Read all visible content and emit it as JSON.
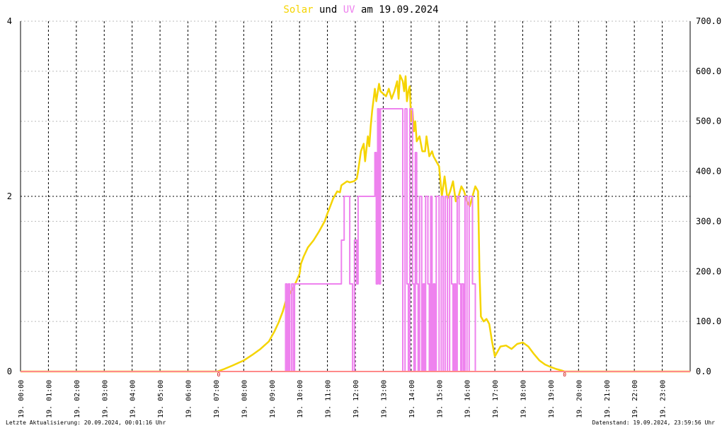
{
  "title": {
    "part1": "Solar",
    "part2": " und ",
    "part3": "UV",
    "part4": " am 19.09.2024",
    "colors": {
      "solar": "#f5d400",
      "uv": "#ee82ee",
      "text": "#000000"
    }
  },
  "footer": {
    "left": "Letzte Aktualisierung: 20.09.2024, 00:01:16 Uhr",
    "right": "Datenstand: 19.09.2024, 23:59:56 Uhr"
  },
  "chart_data": {
    "type": "line",
    "grid": true,
    "x_tick_labels": [
      "19. 00:00",
      "19. 01:00",
      "19. 02:00",
      "19. 03:00",
      "19. 04:00",
      "19. 05:00",
      "19. 06:00",
      "19. 07:00",
      "19. 08:00",
      "19. 09:00",
      "19. 10:00",
      "19. 11:00",
      "19. 12:00",
      "19. 13:00",
      "19. 14:00",
      "19. 15:00",
      "19. 16:00",
      "19. 17:00",
      "19. 18:00",
      "19. 19:00",
      "19. 20:00",
      "19. 21:00",
      "19. 22:00",
      "19. 23:00"
    ],
    "xlim": [
      0,
      24
    ],
    "left_axis": {
      "ylim": [
        0,
        4
      ],
      "tick_labels": [
        "0",
        "2",
        "4"
      ],
      "tick_values": [
        0,
        2,
        4
      ]
    },
    "right_axis": {
      "ylim": [
        0,
        700
      ],
      "tick_labels": [
        "0.0",
        "100.0",
        "200.0",
        "300.0",
        "400.0",
        "500.0",
        "600.0",
        "700.0"
      ],
      "tick_values": [
        0,
        100,
        200,
        300,
        400,
        500,
        600,
        700
      ]
    },
    "markers": [
      {
        "label": "0",
        "x": 7.1
      },
      {
        "label": "0",
        "x": 19.5
      }
    ],
    "series": [
      {
        "color": "#f5d400",
        "axis": "right",
        "points": [
          [
            0,
            0
          ],
          [
            7.05,
            0
          ],
          [
            7.3,
            5
          ],
          [
            7.6,
            12
          ],
          [
            8.0,
            22
          ],
          [
            8.3,
            33
          ],
          [
            8.6,
            45
          ],
          [
            8.9,
            60
          ],
          [
            9.1,
            80
          ],
          [
            9.25,
            98
          ],
          [
            9.4,
            120
          ],
          [
            9.5,
            140
          ],
          [
            9.65,
            155
          ],
          [
            9.8,
            170
          ],
          [
            9.9,
            182
          ],
          [
            10.0,
            195
          ],
          [
            10.05,
            215
          ],
          [
            10.15,
            230
          ],
          [
            10.3,
            248
          ],
          [
            10.5,
            262
          ],
          [
            10.7,
            280
          ],
          [
            10.9,
            300
          ],
          [
            11.0,
            316
          ],
          [
            11.1,
            330
          ],
          [
            11.2,
            345
          ],
          [
            11.35,
            360
          ],
          [
            11.45,
            358
          ],
          [
            11.5,
            372
          ],
          [
            11.6,
            376
          ],
          [
            11.7,
            380
          ],
          [
            11.8,
            378
          ],
          [
            11.95,
            380
          ],
          [
            12.05,
            385
          ],
          [
            12.1,
            400
          ],
          [
            12.2,
            440
          ],
          [
            12.3,
            455
          ],
          [
            12.35,
            420
          ],
          [
            12.45,
            470
          ],
          [
            12.5,
            450
          ],
          [
            12.55,
            490
          ],
          [
            12.6,
            520
          ],
          [
            12.7,
            565
          ],
          [
            12.75,
            540
          ],
          [
            12.85,
            575
          ],
          [
            12.9,
            560
          ],
          [
            13.0,
            555
          ],
          [
            13.1,
            550
          ],
          [
            13.2,
            565
          ],
          [
            13.3,
            545
          ],
          [
            13.4,
            560
          ],
          [
            13.5,
            580
          ],
          [
            13.55,
            545
          ],
          [
            13.6,
            592
          ],
          [
            13.7,
            580
          ],
          [
            13.75,
            560
          ],
          [
            13.8,
            590
          ],
          [
            13.85,
            540
          ],
          [
            13.9,
            560
          ],
          [
            13.95,
            570
          ],
          [
            14.0,
            500
          ],
          [
            14.05,
            520
          ],
          [
            14.1,
            480
          ],
          [
            14.15,
            500
          ],
          [
            14.2,
            460
          ],
          [
            14.3,
            470
          ],
          [
            14.4,
            440
          ],
          [
            14.5,
            440
          ],
          [
            14.55,
            470
          ],
          [
            14.65,
            430
          ],
          [
            14.75,
            440
          ],
          [
            14.8,
            430
          ],
          [
            14.9,
            420
          ],
          [
            15.0,
            410
          ],
          [
            15.1,
            350
          ],
          [
            15.2,
            390
          ],
          [
            15.3,
            345
          ],
          [
            15.4,
            360
          ],
          [
            15.5,
            380
          ],
          [
            15.6,
            340
          ],
          [
            15.7,
            350
          ],
          [
            15.8,
            370
          ],
          [
            15.9,
            360
          ],
          [
            16.0,
            340
          ],
          [
            16.1,
            330
          ],
          [
            16.2,
            350
          ],
          [
            16.3,
            370
          ],
          [
            16.4,
            360
          ],
          [
            16.45,
            200
          ],
          [
            16.5,
            110
          ],
          [
            16.6,
            100
          ],
          [
            16.7,
            105
          ],
          [
            16.8,
            95
          ],
          [
            16.9,
            60
          ],
          [
            17.0,
            30
          ],
          [
            17.1,
            40
          ],
          [
            17.2,
            50
          ],
          [
            17.4,
            52
          ],
          [
            17.6,
            45
          ],
          [
            17.8,
            55
          ],
          [
            18.0,
            58
          ],
          [
            18.2,
            50
          ],
          [
            18.4,
            35
          ],
          [
            18.6,
            22
          ],
          [
            18.8,
            14
          ],
          [
            19.0,
            9
          ],
          [
            19.2,
            5
          ],
          [
            19.4,
            2
          ],
          [
            19.5,
            0
          ],
          [
            24,
            0
          ]
        ]
      },
      {
        "color": "#ee82ee",
        "axis": "left",
        "points": [
          [
            0,
            0
          ],
          [
            9.5,
            0
          ],
          [
            9.5,
            1
          ],
          [
            9.55,
            1
          ],
          [
            9.55,
            0
          ],
          [
            9.6,
            0
          ],
          [
            9.6,
            1
          ],
          [
            9.65,
            1
          ],
          [
            9.65,
            0
          ],
          [
            9.72,
            0
          ],
          [
            9.72,
            1
          ],
          [
            9.78,
            1
          ],
          [
            9.78,
            0
          ],
          [
            9.82,
            0
          ],
          [
            9.82,
            1
          ],
          [
            10.1,
            1
          ],
          [
            11.5,
            1
          ],
          [
            11.5,
            1.5
          ],
          [
            11.6,
            1.5
          ],
          [
            11.6,
            2
          ],
          [
            11.8,
            2
          ],
          [
            11.8,
            1
          ],
          [
            11.9,
            1
          ],
          [
            11.9,
            0
          ],
          [
            11.97,
            0
          ],
          [
            11.97,
            1.5
          ],
          [
            12.05,
            1.5
          ],
          [
            12.05,
            1
          ],
          [
            12.1,
            1
          ],
          [
            12.1,
            2
          ],
          [
            12.7,
            2
          ],
          [
            12.7,
            2.5
          ],
          [
            12.75,
            2.5
          ],
          [
            12.75,
            1
          ],
          [
            12.8,
            1
          ],
          [
            12.8,
            3
          ],
          [
            12.85,
            3
          ],
          [
            12.85,
            1
          ],
          [
            12.9,
            1
          ],
          [
            12.9,
            3
          ],
          [
            13.7,
            3
          ],
          [
            13.7,
            0
          ],
          [
            13.78,
            0
          ],
          [
            13.78,
            3
          ],
          [
            13.85,
            3
          ],
          [
            13.85,
            1
          ],
          [
            13.9,
            1
          ],
          [
            13.9,
            0
          ],
          [
            13.95,
            0
          ],
          [
            13.95,
            3
          ],
          [
            14.05,
            3
          ],
          [
            14.05,
            1
          ],
          [
            14.1,
            1
          ],
          [
            14.1,
            0
          ],
          [
            14.15,
            0
          ],
          [
            14.15,
            2.5
          ],
          [
            14.2,
            2.5
          ],
          [
            14.2,
            1
          ],
          [
            14.25,
            1
          ],
          [
            14.25,
            0
          ],
          [
            14.3,
            0
          ],
          [
            14.3,
            2
          ],
          [
            14.38,
            2
          ],
          [
            14.38,
            0
          ],
          [
            14.43,
            0
          ],
          [
            14.43,
            1
          ],
          [
            14.48,
            1
          ],
          [
            14.48,
            0
          ],
          [
            14.52,
            0
          ],
          [
            14.52,
            2
          ],
          [
            14.6,
            2
          ],
          [
            14.6,
            1
          ],
          [
            14.65,
            1
          ],
          [
            14.65,
            0
          ],
          [
            14.7,
            0
          ],
          [
            14.7,
            2
          ],
          [
            14.75,
            2
          ],
          [
            14.75,
            0
          ],
          [
            14.8,
            0
          ],
          [
            14.8,
            1
          ],
          [
            14.85,
            1
          ],
          [
            14.85,
            0
          ],
          [
            14.9,
            0
          ],
          [
            14.9,
            2
          ],
          [
            15.0,
            2
          ],
          [
            15.0,
            0
          ],
          [
            15.08,
            0
          ],
          [
            15.08,
            2
          ],
          [
            15.15,
            2
          ],
          [
            15.15,
            0
          ],
          [
            15.22,
            0
          ],
          [
            15.22,
            2
          ],
          [
            15.3,
            2
          ],
          [
            15.3,
            0
          ],
          [
            15.38,
            0
          ],
          [
            15.38,
            2
          ],
          [
            15.45,
            2
          ],
          [
            15.45,
            1
          ],
          [
            15.5,
            1
          ],
          [
            15.5,
            0
          ],
          [
            15.55,
            0
          ],
          [
            15.55,
            1
          ],
          [
            15.6,
            1
          ],
          [
            15.6,
            0
          ],
          [
            15.65,
            0
          ],
          [
            15.65,
            2
          ],
          [
            15.72,
            2
          ],
          [
            15.72,
            1
          ],
          [
            15.78,
            1
          ],
          [
            15.78,
            0
          ],
          [
            15.82,
            0
          ],
          [
            15.82,
            1
          ],
          [
            15.88,
            1
          ],
          [
            15.88,
            0
          ],
          [
            15.93,
            0
          ],
          [
            15.93,
            2
          ],
          [
            16.0,
            2
          ],
          [
            16.0,
            0
          ],
          [
            16.08,
            0
          ],
          [
            16.08,
            2
          ],
          [
            16.2,
            2
          ],
          [
            16.2,
            1
          ],
          [
            16.3,
            1
          ],
          [
            16.3,
            0
          ],
          [
            24,
            0
          ]
        ]
      },
      {
        "color": "#ff8a8a",
        "axis": "left",
        "points": [
          [
            0,
            0
          ],
          [
            24,
            0
          ]
        ]
      }
    ]
  }
}
